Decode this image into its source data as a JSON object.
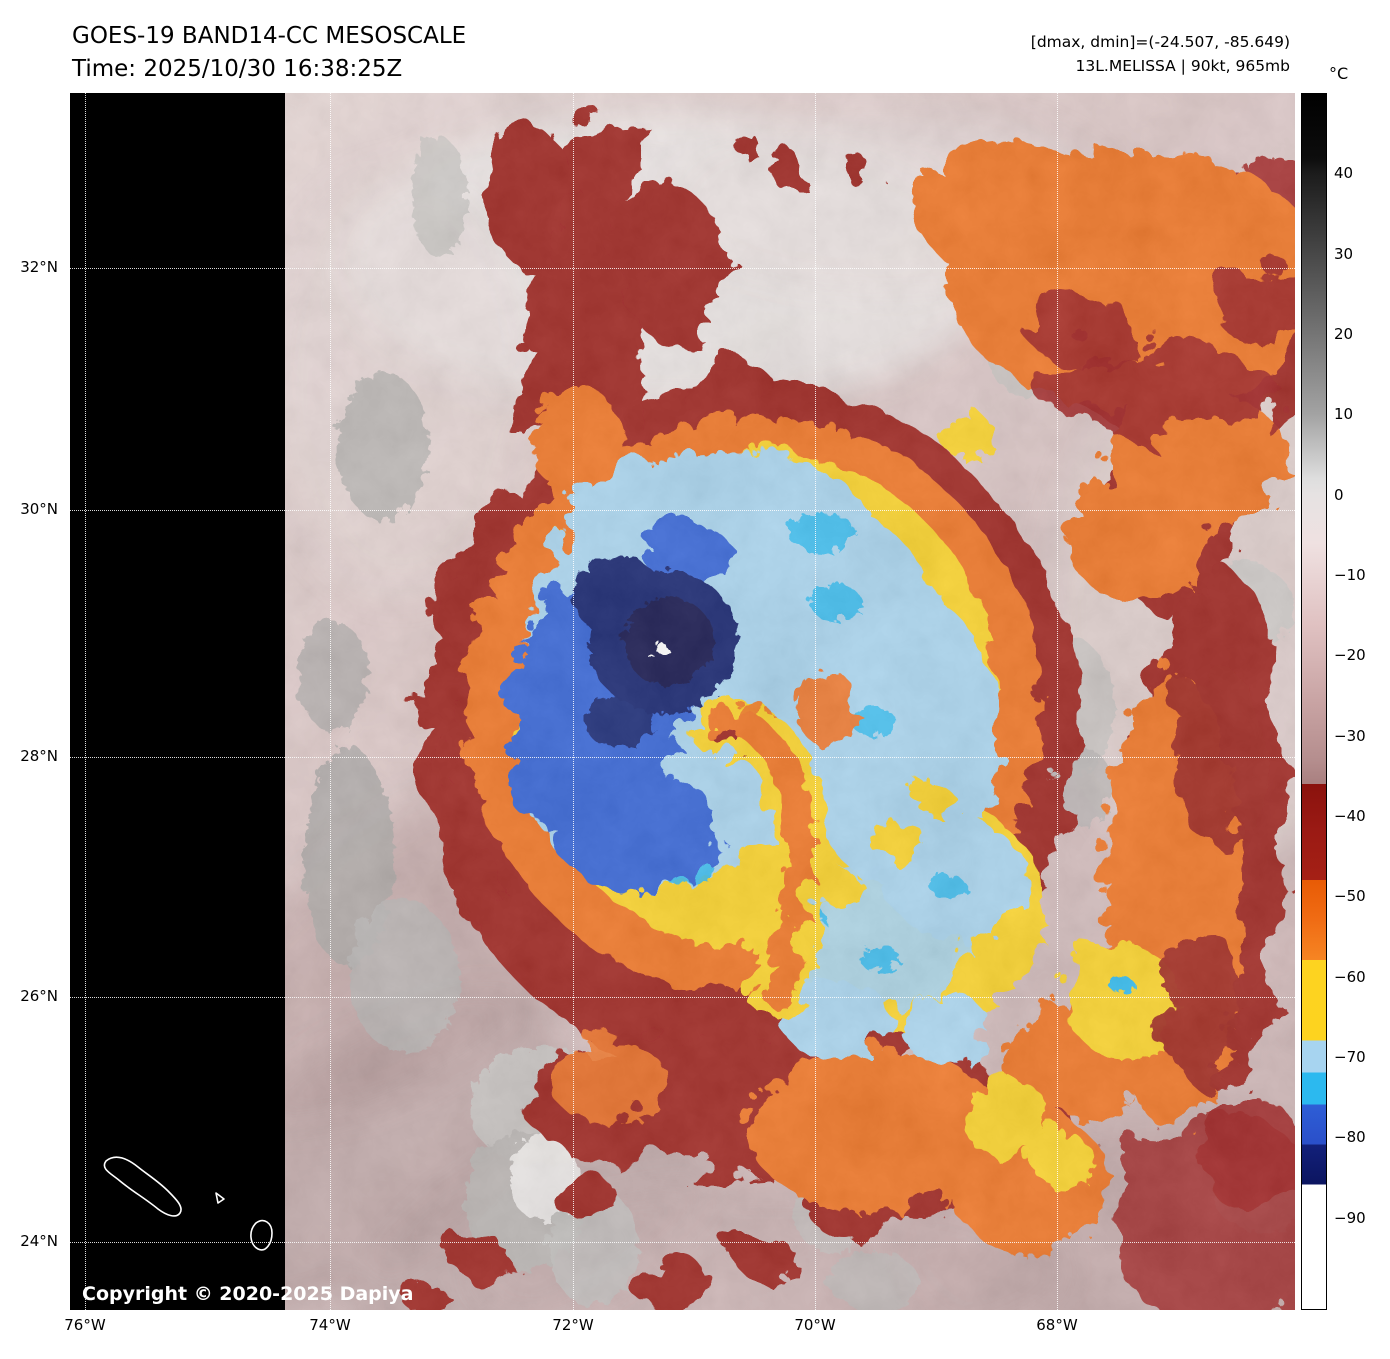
{
  "header": {
    "title": "GOES-19 BAND14-CC MESOSCALE",
    "time_line": "Time: 2025/10/30 16:38:25Z",
    "dmax_dmin": "[dmax, dmin]=(-24.507, -85.649)",
    "storm_line": "13L.MELISSA | 90kt, 965mb"
  },
  "plot": {
    "copyright": "Copyright © 2020-2025 Dapiya"
  },
  "axes": {
    "lat_ticks": [
      {
        "label": "32°N",
        "pos": 0.1438
      },
      {
        "label": "30°N",
        "pos": 0.3427
      },
      {
        "label": "28°N",
        "pos": 0.5456
      },
      {
        "label": "26°N",
        "pos": 0.7428
      },
      {
        "label": "24°N",
        "pos": 0.9442
      }
    ],
    "lon_ticks": [
      {
        "label": "76°W",
        "pos": 0.0122
      },
      {
        "label": "74°W",
        "pos": 0.2122
      },
      {
        "label": "72°W",
        "pos": 0.4106
      },
      {
        "label": "70°W",
        "pos": 0.6082
      },
      {
        "label": "68°W",
        "pos": 0.8057
      }
    ]
  },
  "colorbar": {
    "unit": "°C",
    "top_value": 50,
    "bottom_value": -101.5,
    "ticks": [
      {
        "value": 40,
        "label": "40"
      },
      {
        "value": 30,
        "label": "30"
      },
      {
        "value": 20,
        "label": "20"
      },
      {
        "value": 10,
        "label": "10"
      },
      {
        "value": 0,
        "label": "0"
      },
      {
        "value": -10,
        "label": "−10"
      },
      {
        "value": -20,
        "label": "−20"
      },
      {
        "value": -30,
        "label": "−30"
      },
      {
        "value": -40,
        "label": "−40"
      },
      {
        "value": -50,
        "label": "−50"
      },
      {
        "value": -60,
        "label": "−60"
      },
      {
        "value": -70,
        "label": "−70"
      },
      {
        "value": -80,
        "label": "−80"
      },
      {
        "value": -90,
        "label": "−90"
      }
    ],
    "stops": [
      {
        "t": 50,
        "c": "#000000"
      },
      {
        "t": 42,
        "c": "#0d0d0d"
      },
      {
        "t": 40,
        "c": "#1c1c1c"
      },
      {
        "t": 30,
        "c": "#484848"
      },
      {
        "t": 20,
        "c": "#757575"
      },
      {
        "t": 10,
        "c": "#a3a3a3"
      },
      {
        "t": 2,
        "c": "#dedede"
      },
      {
        "t": 0,
        "c": "#e6e2e2"
      },
      {
        "t": -6,
        "c": "#efe1e1"
      },
      {
        "t": -16,
        "c": "#e0c2c2"
      },
      {
        "t": -26,
        "c": "#c8a3a3"
      },
      {
        "t": -33,
        "c": "#b58e8e"
      },
      {
        "t": -36,
        "c": "#a98080"
      },
      {
        "t": -36,
        "c": "#8a120d"
      },
      {
        "t": -42,
        "c": "#9b1a14"
      },
      {
        "t": -48,
        "c": "#a52015"
      },
      {
        "t": -48,
        "c": "#e85b05"
      },
      {
        "t": -53,
        "c": "#f06c14"
      },
      {
        "t": -58,
        "c": "#f68523"
      },
      {
        "t": -58,
        "c": "#fdd320"
      },
      {
        "t": -68,
        "c": "#fdd31f"
      },
      {
        "t": -68,
        "c": "#a7d4f0"
      },
      {
        "t": -72,
        "c": "#a7d4f0"
      },
      {
        "t": -72,
        "c": "#2cb9ef"
      },
      {
        "t": -76,
        "c": "#2cb9ef"
      },
      {
        "t": -76,
        "c": "#2e5ed6"
      },
      {
        "t": -81,
        "c": "#2a4fc9"
      },
      {
        "t": -81,
        "c": "#12207a"
      },
      {
        "t": -86,
        "c": "#0c1560"
      },
      {
        "t": -86,
        "c": "#ffffff"
      },
      {
        "t": -101.5,
        "c": "#ffffff"
      }
    ]
  },
  "palette": {
    "black": "#000000",
    "dark_red": "#9b1a14",
    "orange": "#f1701e",
    "orange_deep": "#e25a08",
    "yellow": "#fdd320",
    "pale_blue": "#a7d4f0",
    "cyan": "#2cb9ef",
    "blue": "#2e5ed6",
    "navy": "#0e1b6a",
    "navy_dark": "#081144",
    "cloud_gray": "#b7b3b1",
    "cloud_gray_light": "#d8d5d3",
    "cloud_white": "#efeceb",
    "eye_white": "#ffffff"
  }
}
